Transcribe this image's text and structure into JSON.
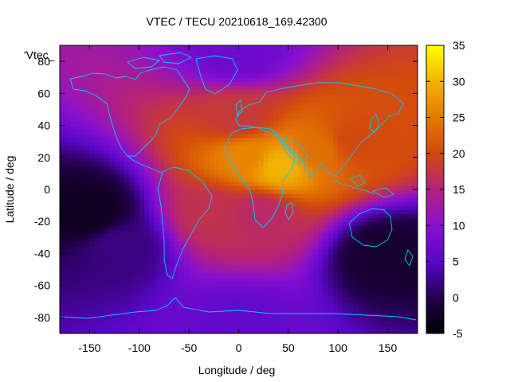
{
  "chart_data": {
    "type": "heatmap",
    "title": "VTEC / TECU 20210618_169.42300",
    "xlabel": "Longitude / deg",
    "ylabel": "Latitude / deg",
    "xlim": [
      -180,
      180
    ],
    "ylim": [
      -90,
      90
    ],
    "x_ticks": [
      -150,
      -100,
      -50,
      0,
      50,
      100,
      150
    ],
    "y_ticks": [
      -80,
      -60,
      -40,
      -20,
      0,
      20,
      40,
      60,
      80
    ],
    "colorbar": {
      "range": [
        -5,
        35
      ],
      "ticks": [
        -5,
        0,
        5,
        10,
        15,
        20,
        25,
        30,
        35
      ],
      "palette": "gnuplot black-blue-purple-red-orange-yellow"
    },
    "key_label": "'Vtec_",
    "overlay": "world coastlines",
    "field_features": [
      {
        "description": "equatorial anomaly crest, sub-solar region",
        "lon": 40,
        "lat": 15,
        "value": 30
      },
      {
        "description": "northern Africa / Middle East",
        "lon": 10,
        "lat": 20,
        "value": 26
      },
      {
        "description": "South Asia",
        "lon": 80,
        "lat": 25,
        "value": 24
      },
      {
        "description": "East Asia",
        "lon": 115,
        "lat": 30,
        "value": 20
      },
      {
        "description": "Europe / mid-latitudes",
        "lon": 0,
        "lat": 45,
        "value": 18
      },
      {
        "description": "southern Africa",
        "lon": 20,
        "lat": -15,
        "value": 16
      },
      {
        "description": "Atlantic south",
        "lon": -25,
        "lat": -15,
        "value": 17
      },
      {
        "description": "mid-Pacific minimum",
        "lon": -150,
        "lat": -15,
        "value": -3
      },
      {
        "description": "southeast Pacific low",
        "lon": -120,
        "lat": -35,
        "value": 2
      },
      {
        "description": "southern Indian Ocean minimum",
        "lon": 150,
        "lat": -40,
        "value": -2
      },
      {
        "description": "Arctic background",
        "lon": 0,
        "lat": 85,
        "value": 7
      },
      {
        "description": "Antarctic background",
        "lon": 0,
        "lat": -85,
        "value": 6
      }
    ]
  },
  "colors": {
    "coastline": "#00ccff",
    "frame": "#000000"
  }
}
